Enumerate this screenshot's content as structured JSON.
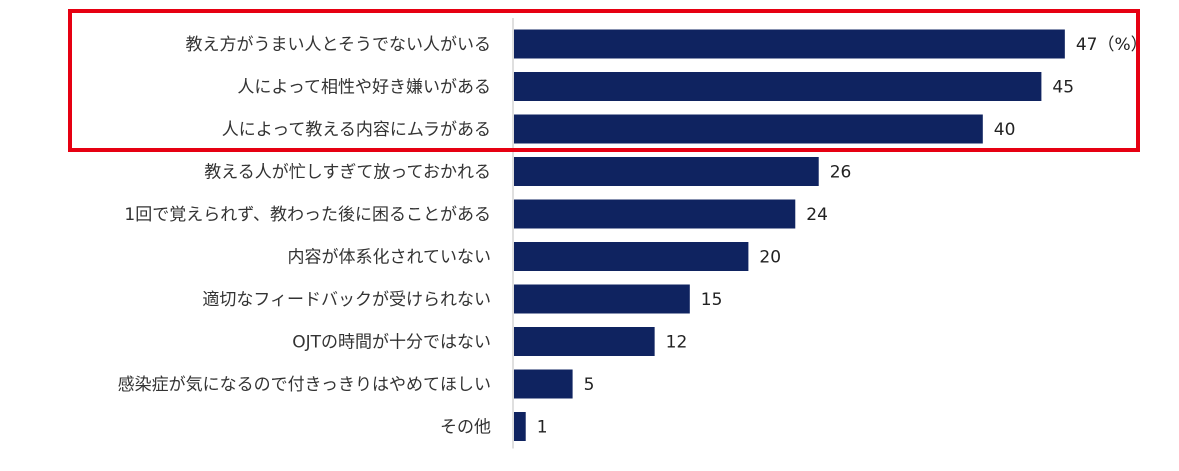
{
  "chart_data": {
    "type": "bar",
    "orientation": "horizontal",
    "categories": [
      "教え方がうまい人とそうでない人がいる",
      "人によって相性や好き嫌いがある",
      "人によって教える内容にムラがある",
      "教える人が忙しすぎて放っておかれる",
      "1回で覚えられず、教わった後に困ることがある",
      "内容が体系化されていない",
      "適切なフィードバックが受けられない",
      "OJTの時間が十分ではない",
      "感染症が気になるので付きっきりはやめてほしい",
      "その他"
    ],
    "values": [
      47,
      45,
      40,
      26,
      24,
      20,
      15,
      12,
      5,
      1
    ],
    "value_labels": [
      "47（%）",
      "45",
      "40",
      "26",
      "24",
      "20",
      "15",
      "12",
      "5",
      "1"
    ],
    "xlim": [
      0,
      50
    ],
    "grid": false,
    "highlighted_categories": [
      0,
      1,
      2
    ]
  },
  "colors": {
    "bar": "#0f2360",
    "highlight_frame": "#e60012",
    "axis": "#bfbfbf"
  }
}
